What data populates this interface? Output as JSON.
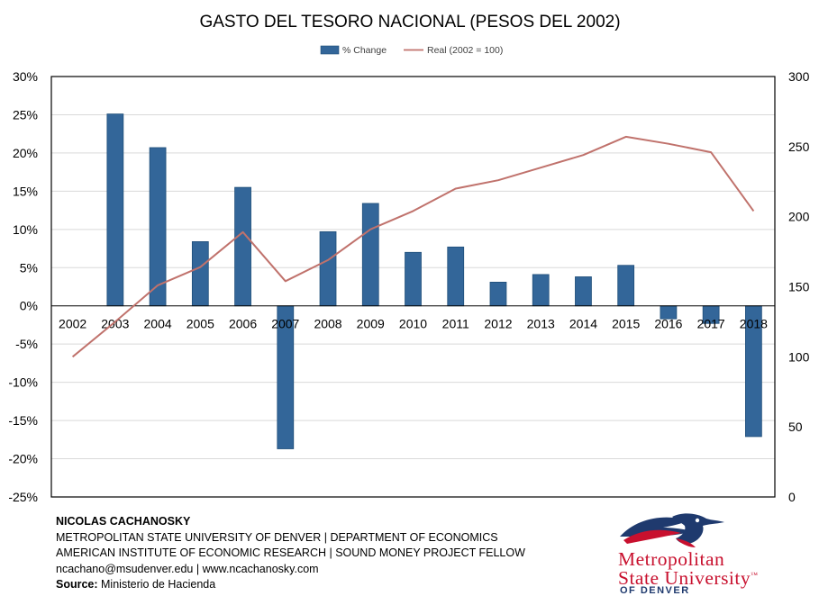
{
  "chart_data": {
    "type": "bar+line",
    "title": "GASTO DEL TESORO NACIONAL (PESOS DEL 2002)",
    "categories": [
      "2002",
      "2003",
      "2004",
      "2005",
      "2006",
      "2007",
      "2008",
      "2009",
      "2010",
      "2011",
      "2012",
      "2013",
      "2014",
      "2015",
      "2016",
      "2017",
      "2018"
    ],
    "series": [
      {
        "name": "% Change",
        "type": "bar",
        "axis": "left",
        "color": "#336699",
        "values": [
          null,
          25.1,
          20.7,
          8.4,
          15.5,
          -18.7,
          9.7,
          13.4,
          7.0,
          7.7,
          3.1,
          4.1,
          3.8,
          5.3,
          -1.7,
          -2.3,
          -17.1
        ]
      },
      {
        "name": "Real (2002 = 100)",
        "type": "line",
        "axis": "right",
        "color": "#c0726c",
        "values": [
          100,
          125,
          151,
          164,
          189,
          154,
          169,
          191,
          204,
          220,
          226,
          235,
          244,
          257,
          252,
          246,
          204
        ]
      }
    ],
    "y_left": {
      "min": -25,
      "max": 30,
      "step": 5,
      "tick_labels": [
        "30%",
        "25%",
        "20%",
        "15%",
        "10%",
        "5%",
        "0%",
        "-5%",
        "-10%",
        "-15%",
        "-20%",
        "-25%"
      ]
    },
    "y_right": {
      "min": 0,
      "max": 300,
      "step": 50,
      "tick_labels": [
        "300",
        "250",
        "200",
        "150",
        "100",
        "50",
        "0"
      ]
    },
    "legend_position": "top-center",
    "grid": true
  },
  "footer": {
    "author": "NICOLAS CACHANOSKY",
    "line2": "METROPOLITAN STATE UNIVERSITY OF DENVER | DEPARTMENT OF ECONOMICS",
    "line3": "AMERICAN INSTITUTE OF ECONOMIC RESEARCH | SOUND MONEY PROJECT FELLOW",
    "line4": "ncachano@msudenver.edu  |  www.ncachanosky.com",
    "source_label": "Source:",
    "source_text": " Ministerio de Hacienda"
  },
  "logo": {
    "line1": "Metropolitan",
    "line2": "State University",
    "trademark": "™",
    "line3": "OF DENVER",
    "colors": {
      "red": "#c8102e",
      "navy": "#1f3a6e"
    }
  }
}
